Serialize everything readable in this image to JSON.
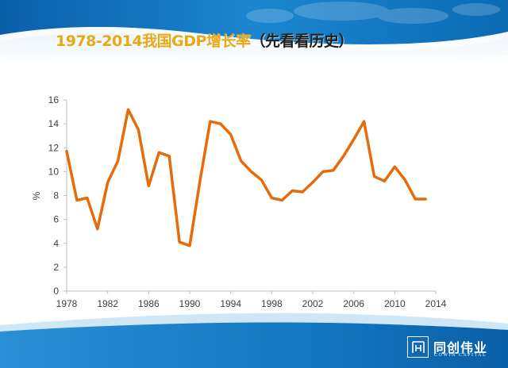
{
  "slide": {
    "title_main": "1978-2014我国GDP增长率",
    "title_paren": "（先看看历史）",
    "logo_chinese": "同创伟业",
    "logo_english": "COWIN CAPITAL",
    "logo_mark": "同"
  },
  "colors": {
    "title": "#e8a817",
    "line": "#e46c0a",
    "banner_dark": "#0a6bb4",
    "banner_light": "#cfe6f7"
  },
  "chart_data": {
    "type": "line",
    "title": "",
    "xlabel": "",
    "ylabel": "%",
    "xlim": [
      1978,
      2014
    ],
    "ylim": [
      0,
      16
    ],
    "x_ticks": [
      "1978",
      "1982",
      "1986",
      "1990",
      "1994",
      "1998",
      "2002",
      "2006",
      "2010",
      "2014"
    ],
    "y_ticks": [
      "0",
      "2",
      "4",
      "6",
      "8",
      "10",
      "12",
      "14",
      "16"
    ],
    "grid": false,
    "series": [
      {
        "x": [
          1978,
          1979,
          1980,
          1981,
          1982,
          1983,
          1984,
          1985,
          1986,
          1987,
          1988,
          1989,
          1990,
          1991,
          1992,
          1993,
          1994,
          1995,
          1996,
          1997,
          1998,
          1999,
          2000,
          2001,
          2002,
          2003,
          2004,
          2005,
          2006,
          2007,
          2008,
          2009,
          2010,
          2011,
          2012,
          2013
        ],
        "values": [
          11.7,
          7.6,
          7.8,
          5.2,
          9.1,
          10.9,
          15.2,
          13.5,
          8.8,
          11.6,
          11.3,
          4.1,
          3.8,
          9.2,
          14.2,
          14.0,
          13.1,
          10.9,
          10.0,
          9.3,
          7.8,
          7.6,
          8.4,
          8.3,
          9.1,
          10.0,
          10.1,
          11.3,
          12.7,
          14.2,
          9.6,
          9.2,
          10.4,
          9.3,
          7.7,
          7.7
        ]
      }
    ]
  }
}
